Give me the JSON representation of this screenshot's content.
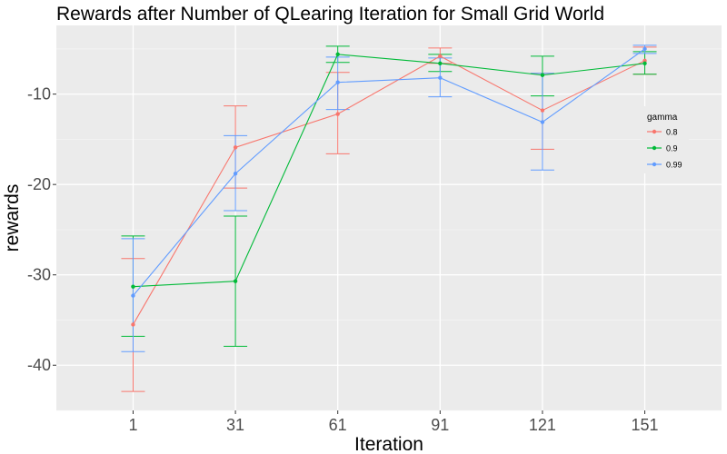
{
  "chart_data": {
    "type": "line",
    "title": "Rewards after Number of QLearing Iteration for Small Grid World",
    "xlabel": "Iteration",
    "ylabel": "rewards",
    "categories": [
      "1",
      "31",
      "61",
      "91",
      "121",
      "151"
    ],
    "y_ticks": [
      -40,
      -30,
      -20,
      -10
    ],
    "ylim": [
      -45,
      -2.4
    ],
    "grid": true,
    "legend": {
      "title": "gamma",
      "placement": "right"
    },
    "series": [
      {
        "name": "0.8",
        "color": "#F8766D",
        "values": [
          -35.5,
          -15.9,
          -12.2,
          -5.8,
          -11.8,
          -6.3
        ],
        "err_low": [
          -42.9,
          -20.4,
          -16.6,
          -6.6,
          -16.1,
          -7.8
        ],
        "err_high": [
          -28.2,
          -11.3,
          -7.6,
          -4.9,
          -7.7,
          -4.8
        ]
      },
      {
        "name": "0.9",
        "color": "#00BA38",
        "values": [
          -31.3,
          -30.7,
          -5.6,
          -6.6,
          -7.9,
          -6.6
        ],
        "err_low": [
          -36.8,
          -37.9,
          -6.5,
          -7.5,
          -10.2,
          -7.8
        ],
        "err_high": [
          -25.7,
          -23.5,
          -4.7,
          -5.6,
          -5.8,
          -5.3
        ]
      },
      {
        "name": "0.99",
        "color": "#619CFF",
        "values": [
          -32.3,
          -18.8,
          -8.7,
          -8.2,
          -13.1,
          -5.0
        ],
        "err_low": [
          -38.5,
          -22.9,
          -11.7,
          -10.3,
          -18.4,
          -5.5
        ],
        "err_high": [
          -26.0,
          -14.6,
          -5.9,
          -6.0,
          -7.7,
          -4.6
        ]
      }
    ]
  }
}
